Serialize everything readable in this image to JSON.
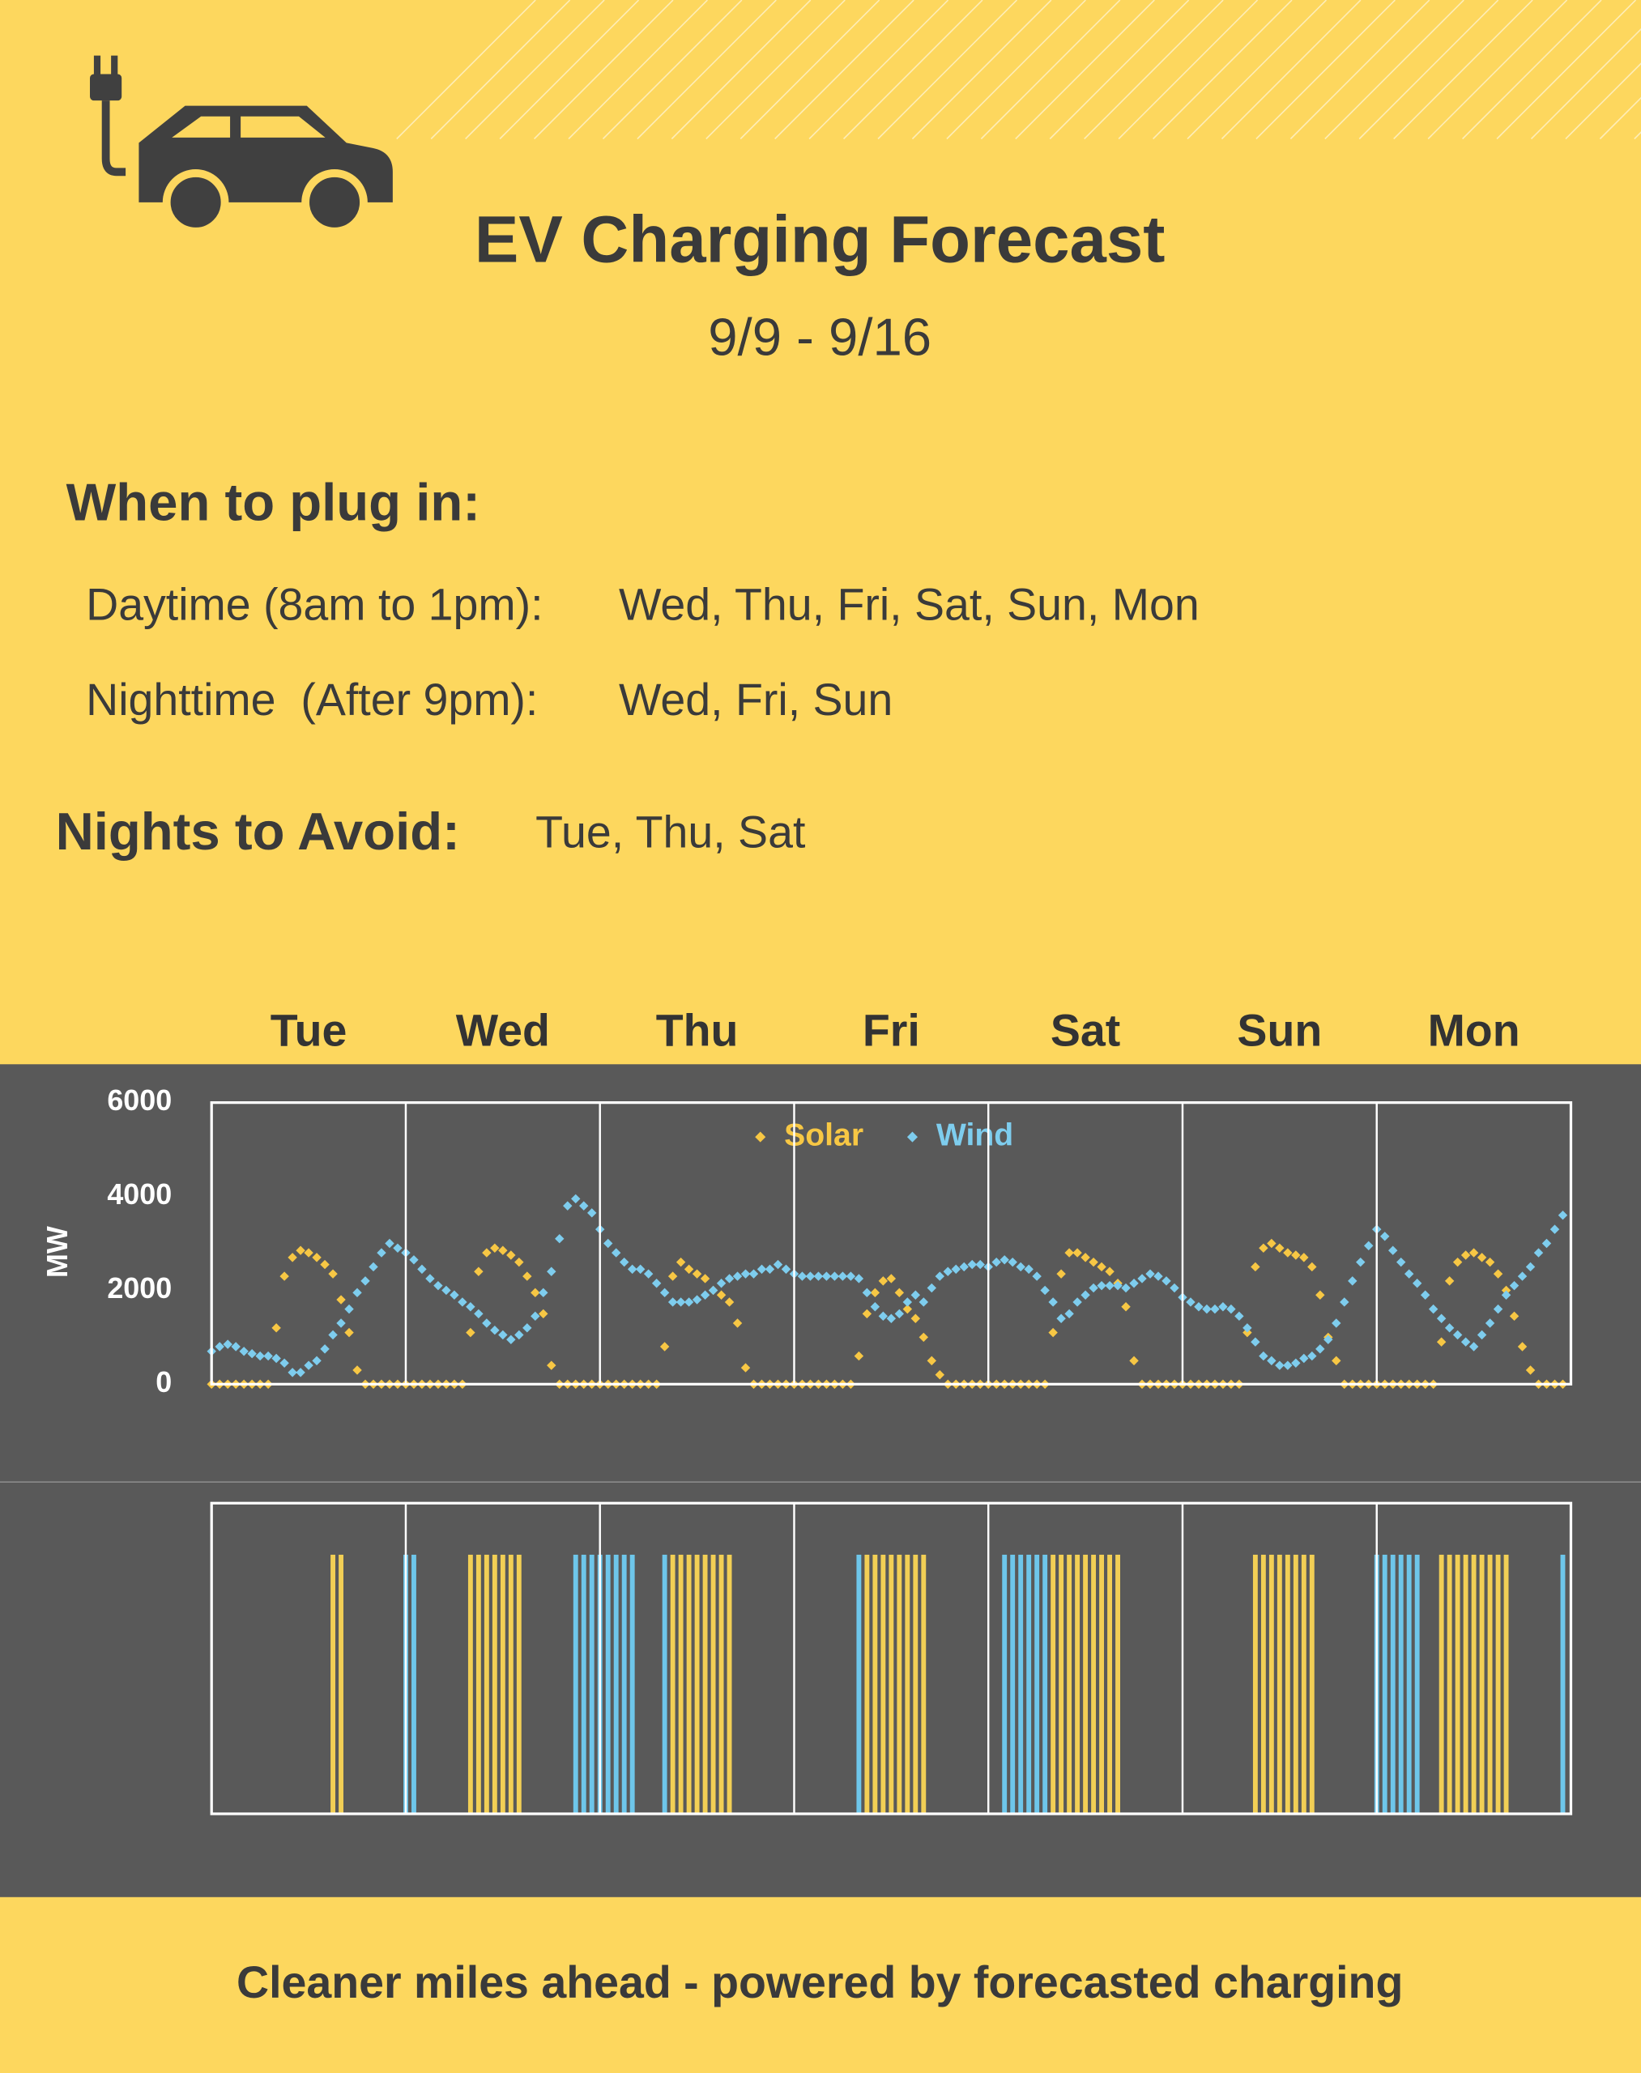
{
  "header": {
    "title": "EV Charging Forecast",
    "date_range": "9/9  -  9/16"
  },
  "plug_in": {
    "heading": "When to plug in:",
    "rows": [
      {
        "label": "Daytime (8am to 1pm):",
        "days": "Wed, Thu, Fri, Sat, Sun, Mon"
      },
      {
        "label": "Nighttime  (After 9pm):",
        "days": "Wed, Fri, Sun"
      }
    ]
  },
  "avoid": {
    "heading": "Nights to Avoid:",
    "days": "Tue, Thu, Sat"
  },
  "chart_data": [
    {
      "type": "scatter",
      "categories": [
        "Tue",
        "Wed",
        "Thu",
        "Fri",
        "Sat",
        "Sun",
        "Mon"
      ],
      "ylabel": "MW",
      "legend": "top",
      "x": [
        0,
        1,
        2,
        3,
        4,
        5,
        6,
        7,
        8,
        9,
        10,
        11,
        12,
        13,
        14,
        15,
        16,
        17,
        18,
        19,
        20,
        21,
        22,
        23,
        24,
        25,
        26,
        27,
        28,
        29,
        30,
        31,
        32,
        33,
        34,
        35,
        36,
        37,
        38,
        39,
        40,
        41,
        42,
        43,
        44,
        45,
        46,
        47,
        48,
        49,
        50,
        51,
        52,
        53,
        54,
        55,
        56,
        57,
        58,
        59,
        60,
        61,
        62,
        63,
        64,
        65,
        66,
        67,
        68,
        69,
        70,
        71,
        72,
        73,
        74,
        75,
        76,
        77,
        78,
        79,
        80,
        81,
        82,
        83,
        84,
        85,
        86,
        87,
        88,
        89,
        90,
        91,
        92,
        93,
        94,
        95,
        96,
        97,
        98,
        99,
        100,
        101,
        102,
        103,
        104,
        105,
        106,
        107,
        108,
        109,
        110,
        111,
        112,
        113,
        114,
        115,
        116,
        117,
        118,
        119,
        120,
        121,
        122,
        123,
        124,
        125,
        126,
        127,
        128,
        129,
        130,
        131,
        132,
        133,
        134,
        135,
        136,
        137,
        138,
        139,
        140,
        141,
        142,
        143,
        144,
        145,
        146,
        147,
        148,
        149,
        150,
        151,
        152,
        153,
        154,
        155,
        156,
        157,
        158,
        159,
        160,
        161,
        162,
        163,
        164,
        165,
        166,
        167
      ],
      "xlim": [
        0,
        168
      ],
      "xticks": [
        0,
        24,
        48,
        72,
        96,
        120,
        144,
        168
      ],
      "ylim": [
        0,
        6000
      ],
      "yticks": [
        0,
        2000,
        4000,
        6000
      ],
      "grid": true,
      "series": [
        {
          "name": "Solar",
          "color": "#f7c744",
          "values": [
            0,
            0,
            0,
            0,
            0,
            0,
            0,
            0,
            1200,
            2300,
            2700,
            2850,
            2800,
            2700,
            2550,
            2350,
            1800,
            1100,
            300,
            0,
            0,
            0,
            0,
            0,
            0,
            0,
            0,
            0,
            0,
            0,
            0,
            0,
            1100,
            2400,
            2800,
            2900,
            2850,
            2750,
            2600,
            2300,
            1950,
            1500,
            400,
            0,
            0,
            0,
            0,
            0,
            0,
            0,
            0,
            0,
            0,
            0,
            0,
            0,
            800,
            2300,
            2600,
            2450,
            2350,
            2250,
            2000,
            1900,
            1750,
            1300,
            350,
            0,
            0,
            0,
            0,
            0,
            0,
            0,
            0,
            0,
            0,
            0,
            0,
            0,
            600,
            1500,
            1950,
            2200,
            2250,
            1950,
            1600,
            1400,
            1000,
            500,
            200,
            0,
            0,
            0,
            0,
            0,
            0,
            0,
            0,
            0,
            0,
            0,
            0,
            0,
            1100,
            2350,
            2800,
            2800,
            2700,
            2600,
            2500,
            2400,
            2150,
            1650,
            500,
            0,
            0,
            0,
            0,
            0,
            0,
            0,
            0,
            0,
            0,
            0,
            0,
            0,
            1100,
            2500,
            2900,
            3000,
            2900,
            2800,
            2750,
            2700,
            2500,
            1900,
            1000,
            500,
            0,
            0,
            0,
            0,
            0,
            0,
            0,
            0,
            0,
            0,
            0,
            0,
            900,
            2200,
            2600,
            2750,
            2800,
            2700,
            2600,
            2350,
            2000,
            1450,
            800,
            300,
            0,
            0,
            0,
            0
          ]
        },
        {
          "name": "Wind",
          "color": "#7ecdee",
          "values": [
            700,
            800,
            850,
            800,
            700,
            650,
            600,
            600,
            550,
            450,
            250,
            250,
            400,
            500,
            750,
            1050,
            1300,
            1600,
            1950,
            2200,
            2500,
            2800,
            3000,
            2900,
            2800,
            2650,
            2450,
            2250,
            2100,
            2000,
            1900,
            1750,
            1650,
            1500,
            1300,
            1150,
            1050,
            950,
            1050,
            1200,
            1450,
            1950,
            2400,
            3100,
            3800,
            3950,
            3800,
            3650,
            3300,
            3000,
            2800,
            2600,
            2450,
            2450,
            2350,
            2150,
            1950,
            1750,
            1750,
            1750,
            1800,
            1900,
            2000,
            2150,
            2250,
            2300,
            2350,
            2350,
            2450,
            2450,
            2550,
            2450,
            2350,
            2300,
            2300,
            2300,
            2300,
            2300,
            2300,
            2300,
            2250,
            1950,
            1650,
            1450,
            1400,
            1500,
            1750,
            1900,
            1750,
            2050,
            2300,
            2400,
            2450,
            2500,
            2550,
            2550,
            2500,
            2600,
            2650,
            2600,
            2500,
            2450,
            2300,
            2000,
            1750,
            1400,
            1500,
            1750,
            1900,
            2050,
            2100,
            2100,
            2100,
            2050,
            2150,
            2250,
            2350,
            2300,
            2200,
            2050,
            1850,
            1750,
            1650,
            1600,
            1600,
            1650,
            1600,
            1450,
            1200,
            900,
            600,
            500,
            400,
            400,
            450,
            550,
            600,
            750,
            950,
            1300,
            1750,
            2200,
            2600,
            2950,
            3300,
            3150,
            2850,
            2600,
            2350,
            2150,
            1900,
            1600,
            1400,
            1200,
            1050,
            900,
            800,
            1050,
            1300,
            1600,
            1900,
            2100,
            2300,
            2500,
            2800,
            3000,
            3300,
            3600
          ]
        }
      ]
    },
    {
      "type": "bar",
      "xlim": [
        0,
        168
      ],
      "xticks": [
        0,
        24,
        48,
        72,
        96,
        120,
        144,
        168
      ],
      "grid": true,
      "series": [
        {
          "color": "#f2cf55",
          "x": [
            15,
            16,
            32,
            33,
            34,
            35,
            36,
            37,
            38,
            57,
            58,
            59,
            60,
            61,
            62,
            63,
            64,
            81,
            82,
            83,
            84,
            85,
            86,
            87,
            88,
            104,
            105,
            106,
            107,
            108,
            109,
            110,
            111,
            112,
            129,
            130,
            131,
            132,
            133,
            134,
            135,
            136,
            152,
            153,
            154,
            155,
            156,
            157,
            158,
            159,
            160
          ]
        },
        {
          "color": "#6ec6ea",
          "x": [
            24,
            25,
            45,
            46,
            47,
            48,
            49,
            50,
            51,
            52,
            56,
            80,
            98,
            99,
            100,
            101,
            102,
            103,
            144,
            145,
            146,
            147,
            148,
            149,
            167
          ]
        }
      ]
    }
  ],
  "footer": "Cleaner miles ahead - powered by forecasted charging"
}
